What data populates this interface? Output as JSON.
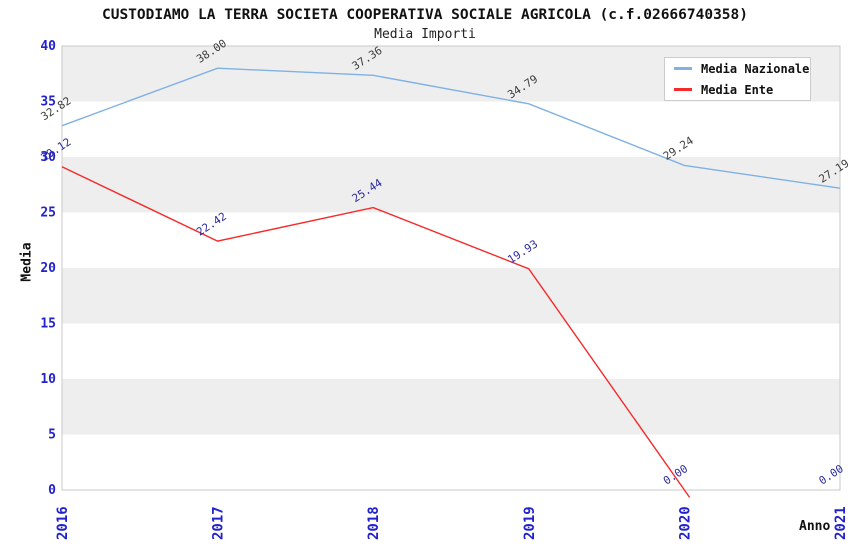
{
  "title": "CUSTODIAMO LA TERRA SOCIETA COOPERATIVA SOCIALE AGRICOLA (c.f.02666740358)",
  "subtitle": "Media Importi",
  "axes": {
    "y_label": "Media",
    "x_label": "Anno",
    "y_ticks": [
      0,
      5,
      10,
      15,
      20,
      25,
      30,
      35,
      40
    ],
    "x_ticks": [
      "2016",
      "2017",
      "2018",
      "2019",
      "2020",
      "2021"
    ]
  },
  "legend": [
    {
      "label": "Media Nazionale",
      "color": "#7FB1E4"
    },
    {
      "label": "Media Ente",
      "color": "#F52B2B"
    }
  ],
  "colors": {
    "band_gray": "#EEEEEE",
    "band_white": "#FFFFFF",
    "frame": "#C9C9C9",
    "tick_label": "#2222CC",
    "nazionale_line": "#7FB1E4",
    "ente_line": "#F52B2B",
    "nazionale_point_label": "#3C3C3C",
    "ente_point_label": "#2B2B9E"
  },
  "chart_data": {
    "type": "line",
    "title": "Media Importi",
    "x": [
      2016,
      2017,
      2018,
      2019,
      2020,
      2021
    ],
    "xlabel": "Anno",
    "ylabel": "Media",
    "ylim": [
      0,
      40
    ],
    "grid": "horizontal-bands",
    "legend_position": "top-right",
    "series": [
      {
        "name": "Media Nazionale",
        "values": [
          32.82,
          38.0,
          37.36,
          34.79,
          29.24,
          27.19
        ]
      },
      {
        "name": "Media Ente",
        "values": [
          29.12,
          22.42,
          25.44,
          19.93,
          0.0,
          0.0
        ]
      }
    ]
  }
}
